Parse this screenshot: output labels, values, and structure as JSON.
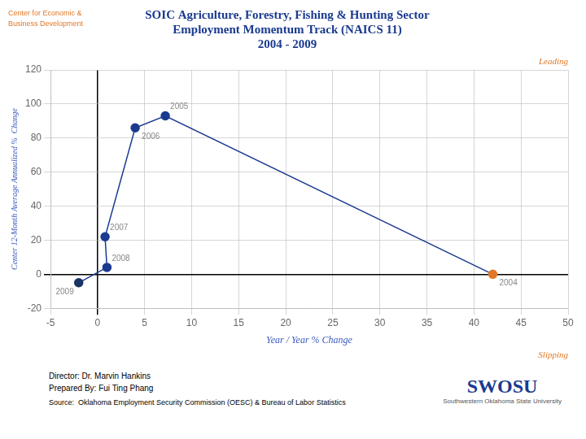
{
  "chart_data": {
    "type": "scatter",
    "title": [
      "SOIC Agriculture, Forestry, Fishing & Hunting Sector",
      "Employment Momentum Track (NAICS 11)",
      "2004 - 2009"
    ],
    "title_color": "#1a3a8f",
    "xlabel": "Year / Year % Change",
    "ylabel": "Center 12-Month Average Annualized %  Change",
    "axis_label_color": "#3a5abf",
    "x": [
      42.0,
      7.2,
      4.0,
      0.8,
      1.0,
      -2.0
    ],
    "values": [
      0.0,
      93.0,
      86.0,
      22.0,
      4.0,
      -5.0
    ],
    "point_labels": [
      "2004",
      "2005",
      "2006",
      "2007",
      "2008",
      "2009"
    ],
    "colors": [
      "#E07828",
      "#1a3a8f",
      "#1a3a8f",
      "#1a3a8f",
      "#1a3a8f",
      "#1a3466"
    ],
    "color": "#1a3a8f",
    "xlim": [
      -5,
      50
    ],
    "xticks": [
      -5,
      0,
      5,
      10,
      15,
      20,
      25,
      30,
      35,
      40,
      45,
      50
    ],
    "ylim": [
      -20,
      120
    ],
    "yticks": [
      -20,
      0,
      20,
      40,
      60,
      80,
      100,
      120
    ],
    "grid": true,
    "annotations": [
      {
        "text": "Leading",
        "color": "#E07828"
      },
      {
        "text": "Slipping",
        "color": "#E07828"
      },
      {
        "text": [
          "Center for Economic &",
          "Business Development"
        ],
        "color": "#E07828"
      }
    ],
    "footer": [
      "Director: Dr. Marvin Hankins",
      "Prepared By: Fui Ting Phang",
      "Source:  Oklahoma Employment Security Commission (OESC) & Bureau of Labor Statistics"
    ],
    "logo": [
      {
        "text": "SWOSU",
        "color": "#1a3a8f"
      },
      {
        "text": "Southwestern Oklahoma State University",
        "color": "#555555"
      }
    ]
  }
}
